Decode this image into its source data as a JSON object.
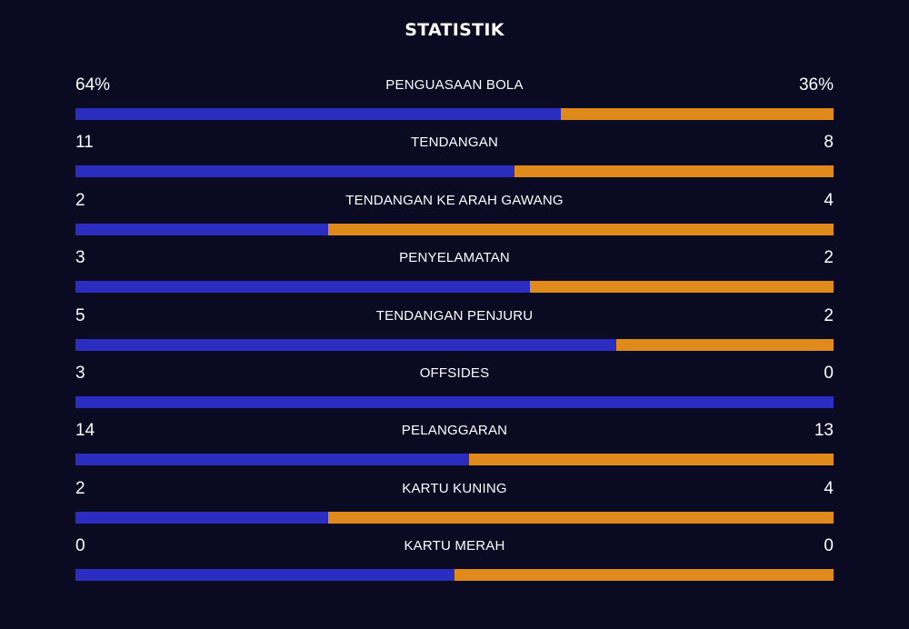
{
  "title": "STATISTIK",
  "colors": {
    "background": "#0a0a23",
    "home_bar": "#2a2dbf",
    "away_bar": "#e08a1c"
  },
  "stats": [
    {
      "label": "PENGUASAAN BOLA",
      "home": "64%",
      "away": "36%",
      "home_share": 0.64
    },
    {
      "label": "TENDANGAN",
      "home": "11",
      "away": "8",
      "home_share": 0.579
    },
    {
      "label": "TENDANGAN KE ARAH GAWANG",
      "home": "2",
      "away": "4",
      "home_share": 0.333
    },
    {
      "label": "PENYELAMATAN",
      "home": "3",
      "away": "2",
      "home_share": 0.6
    },
    {
      "label": "TENDANGAN PENJURU",
      "home": "5",
      "away": "2",
      "home_share": 0.714
    },
    {
      "label": "OFFSIDES",
      "home": "3",
      "away": "0",
      "home_share": 1.0
    },
    {
      "label": "PELANGGARAN",
      "home": "14",
      "away": "13",
      "home_share": 0.519
    },
    {
      "label": "KARTU KUNING",
      "home": "2",
      "away": "4",
      "home_share": 0.333
    },
    {
      "label": "KARTU MERAH",
      "home": "0",
      "away": "0",
      "home_share": 0.5
    }
  ]
}
